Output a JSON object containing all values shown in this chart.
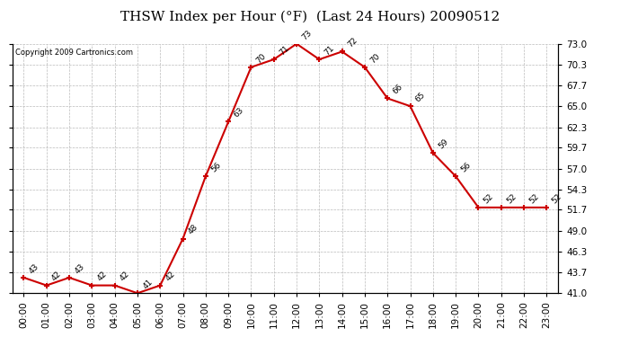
{
  "title": "THSW Index per Hour (°F)  (Last 24 Hours) 20090512",
  "copyright": "Copyright 2009 Cartronics.com",
  "hours": [
    "00:00",
    "01:00",
    "02:00",
    "03:00",
    "04:00",
    "05:00",
    "06:00",
    "07:00",
    "08:00",
    "09:00",
    "10:00",
    "11:00",
    "12:00",
    "13:00",
    "14:00",
    "15:00",
    "16:00",
    "17:00",
    "18:00",
    "19:00",
    "20:00",
    "21:00",
    "22:00",
    "23:00"
  ],
  "values": [
    43,
    42,
    43,
    42,
    42,
    41,
    42,
    48,
    56,
    63,
    70,
    71,
    73,
    71,
    72,
    70,
    66,
    65,
    59,
    56,
    52,
    52,
    52,
    52
  ],
  "ylim": [
    41.0,
    73.0
  ],
  "yticks": [
    41.0,
    43.7,
    46.3,
    49.0,
    51.7,
    54.3,
    57.0,
    59.7,
    62.3,
    65.0,
    67.7,
    70.3,
    73.0
  ],
  "line_color": "#cc0000",
  "marker": "+",
  "marker_color": "#cc0000",
  "bg_color": "#ffffff",
  "grid_color": "#bbbbbb",
  "label_color": "#000000",
  "title_color": "#000000",
  "title_fontsize": 11,
  "tick_fontsize": 7.5,
  "annotation_fontsize": 6.5
}
